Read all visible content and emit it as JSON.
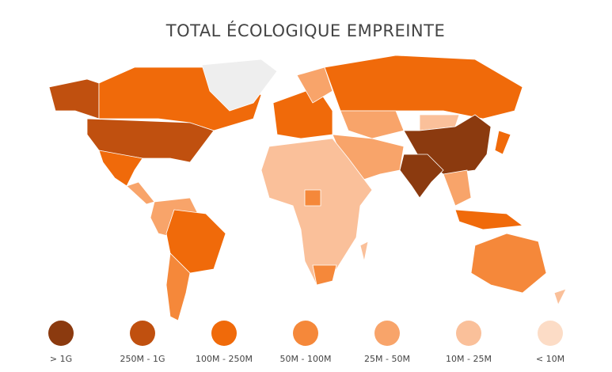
{
  "title": "TOTAL ÉCOLOGIQUE EMPREINTE",
  "legend": {
    "items": [
      {
        "label": "> 1G",
        "color": "#8b3a0f"
      },
      {
        "label": "250M - 1G",
        "color": "#c0500f"
      },
      {
        "label": "100M - 250M",
        "color": "#f06a0a"
      },
      {
        "label": "50M - 100M",
        "color": "#f5883a"
      },
      {
        "label": "25M - 50M",
        "color": "#f8a46a"
      },
      {
        "label": "10M - 25M",
        "color": "#fac09a"
      },
      {
        "label": "< 10M",
        "color": "#fcdcc6"
      }
    ]
  }
}
